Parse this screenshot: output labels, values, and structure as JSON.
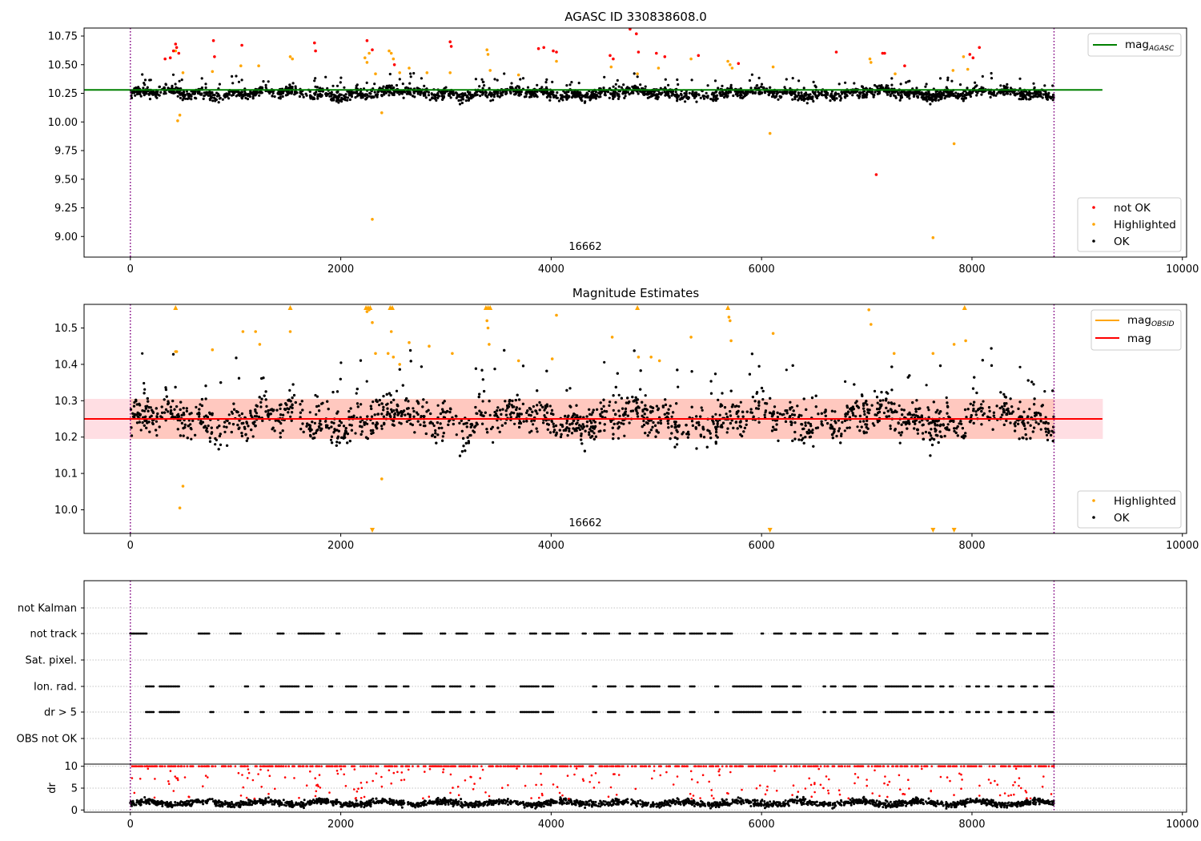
{
  "chart_data": [
    {
      "type": "scatter",
      "title": "AGASC ID 330838608.0",
      "xlim": [
        -440,
        10040
      ],
      "ylim": [
        8.82,
        10.82
      ],
      "x_ticks": [
        "0",
        "2000",
        "4000",
        "6000",
        "8000",
        "10000"
      ],
      "x_tick_values": [
        0,
        2000,
        4000,
        6000,
        8000,
        10000
      ],
      "y_ticks": [
        "9.00",
        "9.25",
        "9.50",
        "9.75",
        "10.00",
        "10.25",
        "10.50",
        "10.75"
      ],
      "y_tick_values": [
        9.0,
        9.25,
        9.5,
        9.75,
        10.0,
        10.25,
        10.5,
        10.75
      ],
      "vlines": [
        0,
        8780
      ],
      "annotation": {
        "text": "16662",
        "x": 4390,
        "y": 8.93
      },
      "reference_line": {
        "label": "mag",
        "subscript": "AGASC",
        "value": 10.28,
        "x_range": [
          -440,
          9240
        ],
        "color": "#008000"
      },
      "legend_lines": [
        {
          "label": "mag",
          "subscript": "AGASC",
          "color": "#008000"
        }
      ],
      "legend_markers": [
        {
          "label": "not OK",
          "color": "#ff0000"
        },
        {
          "label": "Highlighted",
          "color": "#ffa500"
        },
        {
          "label": "OK",
          "color": "#000000"
        }
      ],
      "series": [
        {
          "name": "OK",
          "color": "#000000",
          "x_range": [
            0,
            8780
          ],
          "center": 10.25,
          "spread": 0.045,
          "count": 2400
        },
        {
          "name": "Highlighted",
          "color": "#ffa500",
          "x": [
            430,
            450,
            470,
            500,
            780,
            1050,
            1220,
            1520,
            1540,
            2230,
            2250,
            2270,
            2300,
            2330,
            2390,
            2460,
            2480,
            2500,
            2560,
            2650,
            2820,
            3040,
            3390,
            3400,
            3420,
            3690,
            4050,
            4570,
            4820,
            5020,
            5330,
            5680,
            5700,
            5720,
            6080,
            6110,
            7030,
            7040,
            7270,
            7630,
            7820,
            7830,
            7920,
            7960
          ],
          "y": [
            10.62,
            10.01,
            10.06,
            10.43,
            10.44,
            10.49,
            10.49,
            10.57,
            10.55,
            10.56,
            10.52,
            10.6,
            9.15,
            10.42,
            10.08,
            10.62,
            10.6,
            10.55,
            10.43,
            10.47,
            10.43,
            10.43,
            10.63,
            10.59,
            10.45,
            10.41,
            10.53,
            10.48,
            10.42,
            10.47,
            10.55,
            10.53,
            10.5,
            10.47,
            9.9,
            10.48,
            10.55,
            10.52,
            10.42,
            8.99,
            10.45,
            9.81,
            10.57,
            10.46
          ]
        },
        {
          "name": "not OK",
          "color": "#ff0000",
          "x": [
            330,
            380,
            410,
            430,
            440,
            460,
            790,
            800,
            1060,
            1750,
            1760,
            2250,
            2300,
            2510,
            3040,
            3050,
            3880,
            3930,
            4020,
            4050,
            4560,
            4590,
            4750,
            4810,
            4830,
            5000,
            5080,
            5400,
            5780,
            6710,
            7090,
            7150,
            7170,
            7360,
            7980,
            8010,
            8070
          ],
          "y": [
            10.55,
            10.56,
            10.62,
            10.68,
            10.65,
            10.6,
            10.71,
            10.57,
            10.67,
            10.69,
            10.62,
            10.71,
            10.63,
            10.5,
            10.7,
            10.66,
            10.64,
            10.65,
            10.62,
            10.61,
            10.58,
            10.55,
            10.81,
            10.77,
            10.61,
            10.6,
            10.57,
            10.58,
            10.51,
            10.61,
            9.54,
            10.6,
            10.6,
            10.49,
            10.59,
            10.56,
            10.65
          ]
        }
      ]
    },
    {
      "type": "scatter",
      "title": "Magnitude Estimates",
      "xlim": [
        -440,
        10040
      ],
      "ylim": [
        9.935,
        10.565
      ],
      "x_ticks": [
        "0",
        "2000",
        "4000",
        "6000",
        "8000",
        "10000"
      ],
      "x_tick_values": [
        0,
        2000,
        4000,
        6000,
        8000,
        10000
      ],
      "y_ticks": [
        "10.0",
        "10.1",
        "10.2",
        "10.3",
        "10.4",
        "10.5"
      ],
      "y_tick_values": [
        10.0,
        10.1,
        10.2,
        10.3,
        10.4,
        10.5
      ],
      "vlines": [
        0,
        8780
      ],
      "annotation": {
        "text": "16662",
        "x": 4390,
        "y": 9.955
      },
      "band": {
        "low": 10.195,
        "high": 10.305,
        "x_range": [
          -440,
          9240
        ]
      },
      "reference_line": {
        "label": "mag",
        "value": 10.25,
        "x_range": [
          -440,
          9240
        ],
        "color": "#ff0000"
      },
      "legend_lines": [
        {
          "label": "mag",
          "subscript": "OBSID",
          "color": "#ffa500"
        },
        {
          "label": "mag",
          "color": "#ff0000"
        }
      ],
      "legend_markers": [
        {
          "label": "Highlighted",
          "color": "#ffa500"
        },
        {
          "label": "OK",
          "color": "#000000"
        }
      ],
      "series": [
        {
          "name": "OK",
          "color": "#000000",
          "x_range": [
            0,
            8780
          ],
          "center": 10.25,
          "spread": 0.05,
          "count": 3200
        },
        {
          "name": "Highlighted",
          "color": "#ffa500",
          "x": [
            430,
            440,
            470,
            500,
            780,
            1070,
            1190,
            1230,
            1520,
            2250,
            2270,
            2300,
            2330,
            2390,
            2450,
            2480,
            2500,
            2560,
            2650,
            2840,
            3060,
            3390,
            3400,
            3410,
            3690,
            4010,
            4050,
            4580,
            4830,
            4950,
            5030,
            5330,
            5690,
            5700,
            5710,
            6110,
            7020,
            7040,
            7260,
            7630,
            7830,
            7940
          ],
          "y": [
            10.435,
            10.435,
            10.005,
            10.065,
            10.44,
            10.49,
            10.49,
            10.455,
            10.49,
            10.545,
            10.55,
            10.515,
            10.43,
            10.085,
            10.43,
            10.49,
            10.42,
            10.4,
            10.46,
            10.45,
            10.43,
            10.52,
            10.5,
            10.455,
            10.41,
            10.415,
            10.535,
            10.475,
            10.42,
            10.42,
            10.41,
            10.475,
            10.53,
            10.52,
            10.465,
            10.485,
            10.55,
            10.51,
            10.43,
            10.43,
            10.455,
            10.465
          ]
        },
        {
          "name": "Highlighted (clipped high)",
          "color": "#ffa500",
          "x": [
            430,
            1520,
            2240,
            2260,
            2280,
            2470,
            2490,
            3380,
            3400,
            3420,
            4820,
            5680,
            7930
          ],
          "y": [
            10.565,
            10.565,
            10.565,
            10.565,
            10.565,
            10.565,
            10.565,
            10.565,
            10.565,
            10.565,
            10.565,
            10.565,
            10.565
          ]
        },
        {
          "name": "Highlighted (clipped low)",
          "color": "#ffa500",
          "x": [
            2300,
            6080,
            7630,
            7830
          ],
          "y": [
            9.935,
            9.935,
            9.935,
            9.935
          ]
        }
      ]
    },
    {
      "type": "scatter",
      "title": "",
      "xlim": [
        -440,
        10040
      ],
      "rows": [
        "not Kalman",
        "not track",
        "Sat. pixel.",
        "Ion. rad.",
        "dr > 5",
        "OBS not OK"
      ],
      "x_range": [
        0,
        8780
      ],
      "vlines": [
        0,
        8780
      ],
      "flag_spans": {
        "not track": [
          [
            0,
            160
          ],
          [
            650,
            760
          ],
          [
            950,
            1060
          ],
          [
            1400,
            1460
          ],
          [
            1600,
            1840
          ],
          [
            1960,
            2000
          ],
          [
            2360,
            2420
          ],
          [
            2600,
            2780
          ],
          [
            2950,
            3000
          ],
          [
            3100,
            3200
          ],
          [
            3380,
            3450
          ],
          [
            3600,
            3660
          ],
          [
            3800,
            3860
          ],
          [
            3920,
            4000
          ],
          [
            4050,
            4170
          ],
          [
            4300,
            4340
          ],
          [
            4410,
            4560
          ],
          [
            4650,
            4750
          ],
          [
            4840,
            4920
          ],
          [
            4990,
            5070
          ],
          [
            5170,
            5280
          ],
          [
            5320,
            5440
          ],
          [
            5490,
            5560
          ],
          [
            5620,
            5730
          ],
          [
            6000,
            6020
          ],
          [
            6120,
            6200
          ],
          [
            6280,
            6330
          ],
          [
            6400,
            6480
          ],
          [
            6550,
            6610
          ],
          [
            6690,
            6760
          ],
          [
            6850,
            6950
          ],
          [
            7040,
            7100
          ],
          [
            7250,
            7300
          ],
          [
            7500,
            7560
          ],
          [
            7750,
            7830
          ],
          [
            8050,
            8120
          ],
          [
            8200,
            8260
          ],
          [
            8330,
            8420
          ],
          [
            8490,
            8560
          ],
          [
            8620,
            8720
          ]
        ],
        "Ion. rad.": [
          [
            150,
            230
          ],
          [
            280,
            470
          ],
          [
            760,
            800
          ],
          [
            1090,
            1130
          ],
          [
            1240,
            1280
          ],
          [
            1430,
            1600
          ],
          [
            1670,
            1730
          ],
          [
            1890,
            1920
          ],
          [
            2050,
            2160
          ],
          [
            2270,
            2350
          ],
          [
            2430,
            2530
          ],
          [
            2600,
            2650
          ],
          [
            2870,
            2990
          ],
          [
            3040,
            3150
          ],
          [
            3240,
            3270
          ],
          [
            3390,
            3470
          ],
          [
            3710,
            3880
          ],
          [
            3920,
            4030
          ],
          [
            4400,
            4440
          ],
          [
            4540,
            4620
          ],
          [
            4720,
            4780
          ],
          [
            4860,
            5030
          ],
          [
            5120,
            5220
          ],
          [
            5320,
            5370
          ],
          [
            5560,
            5590
          ],
          [
            5730,
            6000
          ],
          [
            6100,
            6240
          ],
          [
            6300,
            6370
          ],
          [
            6590,
            6610
          ],
          [
            6660,
            6710
          ],
          [
            6780,
            6900
          ],
          [
            6980,
            7100
          ],
          [
            7180,
            7400
          ],
          [
            7440,
            7520
          ],
          [
            7560,
            7630
          ],
          [
            7700,
            7740
          ],
          [
            7790,
            7830
          ],
          [
            7950,
            7990
          ],
          [
            8040,
            8080
          ],
          [
            8130,
            8170
          ],
          [
            8250,
            8290
          ],
          [
            8350,
            8400
          ],
          [
            8470,
            8520
          ],
          [
            8590,
            8620
          ],
          [
            8700,
            8780
          ]
        ],
        "dr > 5": [
          [
            150,
            230
          ],
          [
            280,
            470
          ],
          [
            760,
            800
          ],
          [
            1090,
            1130
          ],
          [
            1240,
            1280
          ],
          [
            1430,
            1600
          ],
          [
            1670,
            1730
          ],
          [
            1890,
            1920
          ],
          [
            2050,
            2160
          ],
          [
            2270,
            2350
          ],
          [
            2430,
            2530
          ],
          [
            2600,
            2650
          ],
          [
            2870,
            2990
          ],
          [
            3040,
            3150
          ],
          [
            3240,
            3270
          ],
          [
            3390,
            3470
          ],
          [
            3710,
            3880
          ],
          [
            3920,
            4030
          ],
          [
            4400,
            4440
          ],
          [
            4540,
            4620
          ],
          [
            4720,
            4780
          ],
          [
            4860,
            5030
          ],
          [
            5120,
            5220
          ],
          [
            5320,
            5370
          ],
          [
            5560,
            5590
          ],
          [
            5730,
            6000
          ],
          [
            6100,
            6240
          ],
          [
            6300,
            6370
          ],
          [
            6590,
            6610
          ],
          [
            6660,
            6710
          ],
          [
            6780,
            6900
          ],
          [
            6980,
            7100
          ],
          [
            7180,
            7400
          ],
          [
            7440,
            7520
          ],
          [
            7560,
            7630
          ],
          [
            7700,
            7740
          ],
          [
            7790,
            7830
          ],
          [
            7950,
            7990
          ],
          [
            8040,
            8080
          ],
          [
            8130,
            8170
          ],
          [
            8250,
            8290
          ],
          [
            8350,
            8400
          ],
          [
            8470,
            8520
          ],
          [
            8590,
            8620
          ],
          [
            8700,
            8780
          ]
        ]
      }
    },
    {
      "type": "scatter",
      "title": "",
      "ylabel": "dr",
      "xlim": [
        -440,
        10040
      ],
      "ylim": [
        -0.5,
        10.5
      ],
      "x_ticks": [
        "0",
        "2000",
        "4000",
        "6000",
        "8000",
        "10000"
      ],
      "x_tick_values": [
        0,
        2000,
        4000,
        6000,
        8000,
        10000
      ],
      "y_ticks": [
        "0",
        "5",
        "10"
      ],
      "y_tick_values": [
        0,
        5,
        10
      ],
      "vlines": [
        0,
        8780
      ],
      "series": [
        {
          "name": "dr",
          "color": "#000000",
          "x_range": [
            0,
            8780
          ],
          "center": 1.6,
          "spread": 0.7,
          "count": 2200
        },
        {
          "name": "dr > 5",
          "color": "#ff0000",
          "x_range": [
            0,
            8780
          ],
          "center": 10,
          "count": 900
        }
      ]
    }
  ]
}
